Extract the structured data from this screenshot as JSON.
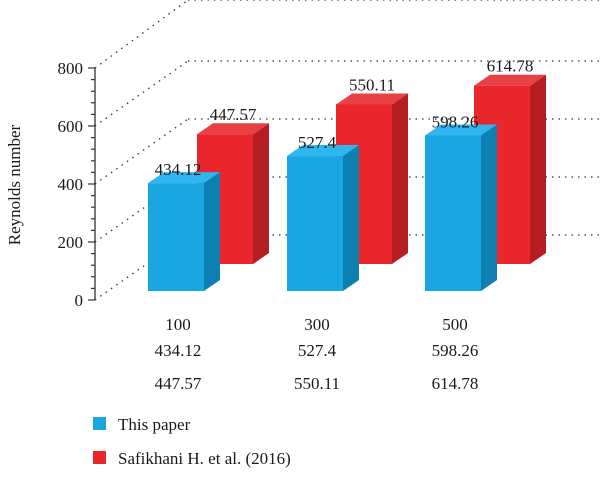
{
  "chart_data": {
    "type": "bar",
    "style": "3d-clustered-column",
    "ylabel": "Reynolds number",
    "ylim": [
      0,
      800
    ],
    "yticks": [
      0,
      200,
      400,
      600,
      800
    ],
    "categories": [
      "100",
      "300",
      "500"
    ],
    "series": [
      {
        "name": "This paper",
        "values": [
          434.12,
          527.4,
          598.26
        ],
        "labels": [
          "434.12",
          "527.4",
          "598.26"
        ]
      },
      {
        "name": "Safikhani H. et al. (2016)",
        "values": [
          447.57,
          550.11,
          614.78
        ],
        "labels": [
          "447.57",
          "550.11",
          "614.78"
        ]
      }
    ],
    "grid": "dotted back-wall lines",
    "legend_position": "bottom-left",
    "table_below_axis": true
  },
  "colors": {
    "series_front": [
      "#1aa7e1",
      "#e8262b"
    ],
    "series_side": [
      "#0d7fb0",
      "#b41d22"
    ],
    "series_top": [
      "#2fb6ee",
      "#e84144"
    ],
    "axis": "#333333"
  }
}
